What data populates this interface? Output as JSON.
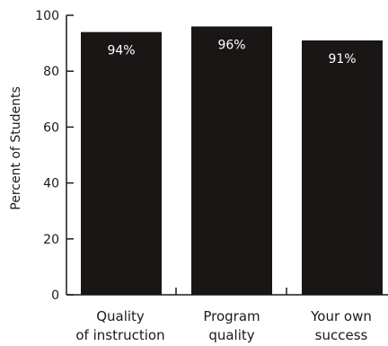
{
  "chart_data": {
    "type": "bar",
    "categories": [
      [
        "Quality",
        "of instruction"
      ],
      [
        "Program",
        "quality"
      ],
      [
        "Your own",
        "success"
      ]
    ],
    "values": [
      94,
      96,
      91
    ],
    "value_labels": [
      "94%",
      "96%",
      "91%"
    ],
    "ylabel": "Percent of Students",
    "ylim": [
      0,
      100
    ],
    "yticks": [
      0,
      20,
      40,
      60,
      80,
      100
    ],
    "bar_color": "#1a1616",
    "grid": false
  }
}
